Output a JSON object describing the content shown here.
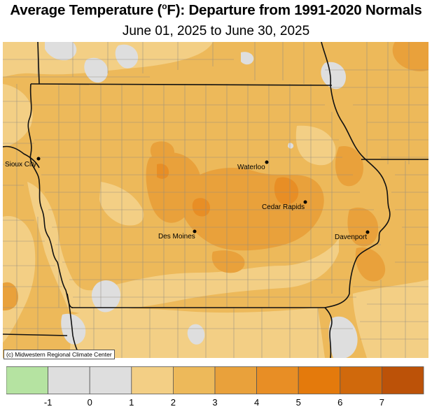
{
  "title": {
    "prefix": "Average Temperature (",
    "degree": "o",
    "suffix": "F): Departure from 1991-2020 Normals"
  },
  "subtitle": "June 01, 2025 to June 30, 2025",
  "credit": "(c) Midwestern Regional Climate Center",
  "cities": [
    {
      "name": "Sioux City"
    },
    {
      "name": "Waterloo"
    },
    {
      "name": "Cedar Rapids"
    },
    {
      "name": "Des Moines"
    },
    {
      "name": "Davenport"
    }
  ],
  "legend": {
    "bins": [
      {
        "color": "#b5e3a1"
      },
      {
        "color": "#dedede"
      },
      {
        "color": "#dedede"
      },
      {
        "color": "#f3cf85"
      },
      {
        "color": "#edb95a"
      },
      {
        "color": "#e9a13b"
      },
      {
        "color": "#e88e25"
      },
      {
        "color": "#e47a0c"
      },
      {
        "color": "#d0690c"
      },
      {
        "color": "#bc5208"
      }
    ],
    "ticks": [
      "-1",
      "0",
      "1",
      "2",
      "3",
      "4",
      "5",
      "6",
      "7"
    ]
  },
  "colors": {
    "light": "#f3cf85",
    "mid": "#edb95a",
    "dark": "#e9a13b",
    "darker": "#e88e25",
    "gray": "#dedede"
  }
}
